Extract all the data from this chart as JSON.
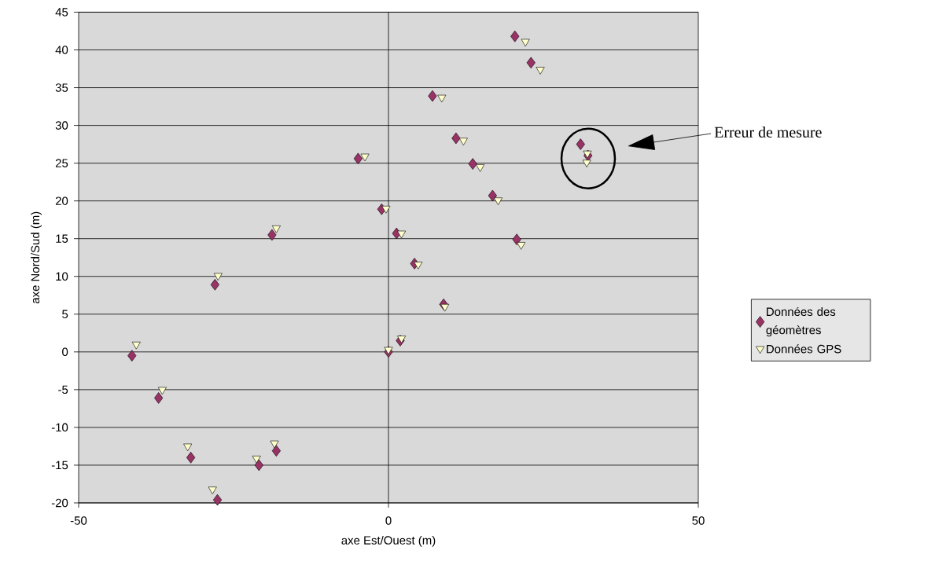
{
  "chart_data": {
    "type": "scatter",
    "xlabel": "axe Est/Ouest (m)",
    "ylabel": "axe Nord/Sud (m)",
    "x": [
      -41.4,
      -37.1,
      -31.9,
      -27.6,
      -20.9,
      -18.1,
      -28.0,
      -18.8,
      -4.9,
      -1.1,
      1.3,
      0.0,
      1.9,
      7.1,
      10.9,
      13.6,
      16.8,
      20.7,
      4.2,
      8.9,
      20.4,
      23.0,
      31.0,
      32.2
    ],
    "series": [
      {
        "name": "Données des géomètres",
        "color": "#993366",
        "marker": "diamond",
        "values": [
          -0.5,
          -6.1,
          -14.0,
          -19.6,
          -15.0,
          -13.1,
          8.9,
          15.5,
          25.6,
          18.9,
          15.7,
          0.0,
          1.5,
          33.9,
          28.3,
          24.9,
          20.7,
          14.9,
          11.7,
          6.3,
          41.8,
          38.3,
          27.5,
          26.0
        ]
      },
      {
        "name": "Données GPS",
        "color": "#ffffcc",
        "marker": "triangle",
        "x": [
          -40.7,
          -36.5,
          -32.4,
          -28.4,
          -21.3,
          -18.4,
          -27.5,
          -18.1,
          -3.8,
          -0.4,
          2.1,
          0.0,
          2.1,
          8.6,
          12.1,
          14.8,
          17.7,
          21.4,
          4.8,
          9.1,
          22.1,
          24.5,
          32.1,
          32.0
        ],
        "values": [
          1.0,
          -5.0,
          -12.5,
          -18.2,
          -14.1,
          -12.1,
          10.1,
          16.4,
          25.9,
          19.0,
          15.7,
          0.3,
          1.8,
          33.7,
          28.0,
          24.5,
          20.1,
          14.2,
          11.6,
          6.0,
          41.1,
          37.4,
          26.3,
          25.1
        ]
      }
    ],
    "xlim": [
      -50,
      50
    ],
    "ylim": [
      -20,
      45
    ],
    "xticks": [
      -50,
      0,
      50
    ],
    "yticks": [
      -20,
      -15,
      -10,
      -5,
      0,
      5,
      10,
      15,
      20,
      25,
      30,
      35,
      40,
      45
    ],
    "grid": "y",
    "legend": "right",
    "ref_lines": [
      {
        "axis": "x",
        "value": 0,
        "color": "#000000"
      }
    ],
    "annotations": [
      "Erreur de mesure"
    ]
  }
}
